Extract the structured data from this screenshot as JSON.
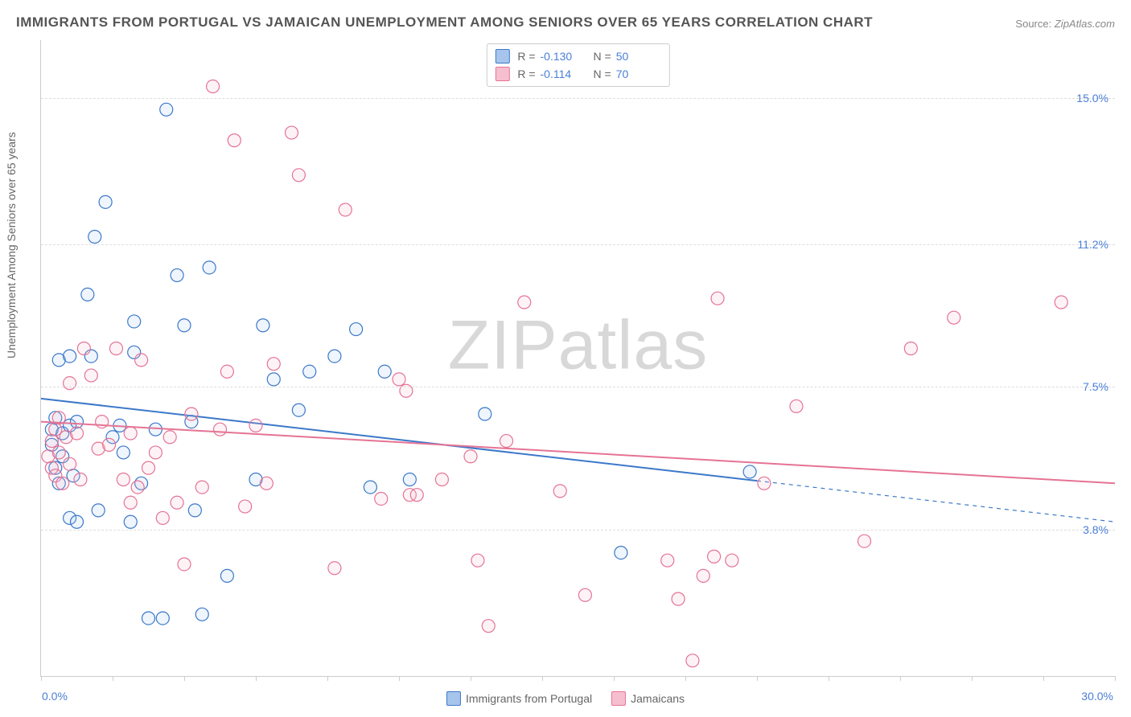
{
  "title": "IMMIGRANTS FROM PORTUGAL VS JAMAICAN UNEMPLOYMENT AMONG SENIORS OVER 65 YEARS CORRELATION CHART",
  "source_label": "Source:",
  "source_value": "ZipAtlas.com",
  "ylabel": "Unemployment Among Seniors over 65 years",
  "watermark_a": "ZIP",
  "watermark_b": "atlas",
  "chart": {
    "type": "scatter",
    "xlim": [
      0,
      30
    ],
    "ylim": [
      0,
      16.5
    ],
    "x_ticks_minor": [
      0,
      2,
      4,
      6,
      8,
      10,
      12,
      14,
      16,
      18,
      20,
      22,
      24,
      26,
      28,
      30
    ],
    "y_gridlines": [
      3.8,
      7.5,
      11.2,
      15.0
    ],
    "x_tick_labels": {
      "min": "0.0%",
      "max": "30.0%"
    },
    "y_tick_labels": [
      "3.8%",
      "7.5%",
      "11.2%",
      "15.0%"
    ],
    "background_color": "#ffffff",
    "grid_color": "#dddddd",
    "axis_color": "#cccccc",
    "tick_label_color": "#4a7fd6",
    "label_color": "#666666",
    "title_color": "#555555",
    "point_radius": 8,
    "point_stroke_width": 1.2,
    "point_fill_opacity": 0.18,
    "trend_line_width": 2,
    "series": [
      {
        "name": "Immigrants from Portugal",
        "color_stroke": "#3b78c9",
        "color_fill": "#a7c5ec",
        "R": "-0.130",
        "N": "50",
        "trend": {
          "y_at_x0": 7.2,
          "y_at_xmax": 4.0,
          "solid_until_x": 20.0
        },
        "points": [
          [
            0.3,
            6.0
          ],
          [
            0.3,
            6.4
          ],
          [
            0.4,
            5.4
          ],
          [
            0.4,
            6.7
          ],
          [
            0.5,
            5.0
          ],
          [
            0.5,
            8.2
          ],
          [
            0.6,
            5.7
          ],
          [
            0.6,
            6.3
          ],
          [
            0.8,
            4.1
          ],
          [
            0.8,
            6.5
          ],
          [
            0.8,
            8.3
          ],
          [
            0.9,
            5.2
          ],
          [
            1.0,
            4.0
          ],
          [
            1.0,
            6.6
          ],
          [
            1.3,
            9.9
          ],
          [
            1.4,
            8.3
          ],
          [
            1.5,
            11.4
          ],
          [
            1.6,
            4.3
          ],
          [
            1.8,
            12.3
          ],
          [
            2.0,
            6.2
          ],
          [
            2.2,
            6.5
          ],
          [
            2.3,
            5.8
          ],
          [
            2.5,
            4.0
          ],
          [
            2.6,
            8.4
          ],
          [
            2.6,
            9.2
          ],
          [
            2.8,
            5.0
          ],
          [
            3.0,
            1.5
          ],
          [
            3.2,
            6.4
          ],
          [
            3.4,
            1.5
          ],
          [
            3.5,
            14.7
          ],
          [
            3.8,
            10.4
          ],
          [
            4.0,
            9.1
          ],
          [
            4.2,
            6.6
          ],
          [
            4.3,
            4.3
          ],
          [
            4.5,
            1.6
          ],
          [
            4.7,
            10.6
          ],
          [
            5.2,
            2.6
          ],
          [
            6.0,
            5.1
          ],
          [
            6.2,
            9.1
          ],
          [
            6.5,
            7.7
          ],
          [
            7.2,
            6.9
          ],
          [
            7.5,
            7.9
          ],
          [
            8.2,
            8.3
          ],
          [
            8.8,
            9.0
          ],
          [
            9.2,
            4.9
          ],
          [
            9.6,
            7.9
          ],
          [
            10.3,
            5.1
          ],
          [
            12.4,
            6.8
          ],
          [
            16.2,
            3.2
          ],
          [
            19.8,
            5.3
          ]
        ]
      },
      {
        "name": "Jamaicans",
        "color_stroke": "#e57394",
        "color_fill": "#f6bfd0",
        "R": "-0.114",
        "N": "70",
        "trend": {
          "y_at_x0": 6.6,
          "y_at_xmax": 5.0,
          "solid_until_x": 30.0
        },
        "points": [
          [
            0.2,
            5.7
          ],
          [
            0.3,
            5.4
          ],
          [
            0.3,
            6.1
          ],
          [
            0.4,
            5.2
          ],
          [
            0.4,
            6.4
          ],
          [
            0.5,
            5.8
          ],
          [
            0.5,
            6.7
          ],
          [
            0.6,
            5.0
          ],
          [
            0.7,
            6.2
          ],
          [
            0.8,
            5.5
          ],
          [
            0.8,
            7.6
          ],
          [
            1.0,
            6.3
          ],
          [
            1.1,
            5.1
          ],
          [
            1.2,
            8.5
          ],
          [
            1.4,
            7.8
          ],
          [
            1.6,
            5.9
          ],
          [
            1.7,
            6.6
          ],
          [
            1.9,
            6.0
          ],
          [
            2.1,
            8.5
          ],
          [
            2.3,
            5.1
          ],
          [
            2.5,
            4.5
          ],
          [
            2.5,
            6.3
          ],
          [
            2.7,
            4.9
          ],
          [
            2.8,
            8.2
          ],
          [
            3.0,
            5.4
          ],
          [
            3.2,
            5.8
          ],
          [
            3.4,
            4.1
          ],
          [
            3.6,
            6.2
          ],
          [
            3.8,
            4.5
          ],
          [
            4.0,
            2.9
          ],
          [
            4.2,
            6.8
          ],
          [
            4.5,
            4.9
          ],
          [
            4.8,
            15.3
          ],
          [
            5.0,
            6.4
          ],
          [
            5.2,
            7.9
          ],
          [
            5.4,
            13.9
          ],
          [
            5.7,
            4.4
          ],
          [
            6.0,
            6.5
          ],
          [
            6.3,
            5.0
          ],
          [
            6.5,
            8.1
          ],
          [
            7.0,
            14.1
          ],
          [
            7.2,
            13.0
          ],
          [
            8.2,
            2.8
          ],
          [
            8.5,
            12.1
          ],
          [
            9.5,
            4.6
          ],
          [
            10.0,
            7.7
          ],
          [
            10.2,
            7.4
          ],
          [
            10.3,
            4.7
          ],
          [
            10.5,
            4.7
          ],
          [
            11.2,
            5.1
          ],
          [
            12.0,
            5.7
          ],
          [
            12.2,
            3.0
          ],
          [
            12.5,
            1.3
          ],
          [
            13.0,
            6.1
          ],
          [
            13.5,
            9.7
          ],
          [
            14.5,
            4.8
          ],
          [
            15.2,
            2.1
          ],
          [
            17.5,
            3.0
          ],
          [
            17.8,
            2.0
          ],
          [
            18.2,
            0.4
          ],
          [
            18.5,
            2.6
          ],
          [
            18.8,
            3.1
          ],
          [
            18.9,
            9.8
          ],
          [
            19.3,
            3.0
          ],
          [
            20.2,
            5.0
          ],
          [
            21.1,
            7.0
          ],
          [
            23.0,
            3.5
          ],
          [
            24.3,
            8.5
          ],
          [
            25.5,
            9.3
          ],
          [
            28.5,
            9.7
          ]
        ]
      }
    ]
  },
  "legend_top": {
    "r_label": "R =",
    "n_label": "N ="
  },
  "legend_bottom": {
    "items": [
      "Immigrants from Portugal",
      "Jamaicans"
    ]
  }
}
